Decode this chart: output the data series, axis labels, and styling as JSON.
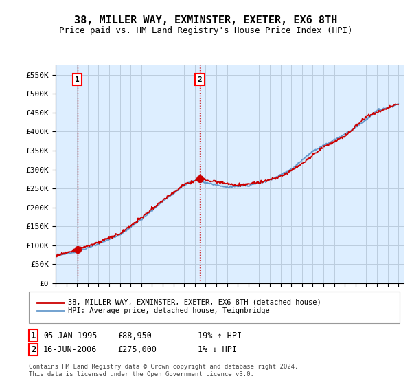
{
  "title": "38, MILLER WAY, EXMINSTER, EXETER, EX6 8TH",
  "subtitle": "Price paid vs. HM Land Registry's House Price Index (HPI)",
  "ylabel_ticks": [
    "£0",
    "£50K",
    "£100K",
    "£150K",
    "£200K",
    "£250K",
    "£300K",
    "£350K",
    "£400K",
    "£450K",
    "£500K",
    "£550K"
  ],
  "ytick_vals": [
    0,
    50000,
    100000,
    150000,
    200000,
    250000,
    300000,
    350000,
    400000,
    450000,
    500000,
    550000
  ],
  "ylim": [
    0,
    575000
  ],
  "xlim_start": 1993.0,
  "xlim_end": 2025.5,
  "sale1_date_num": 1995.03,
  "sale1_price": 88950,
  "sale1_label": "1",
  "sale1_date_str": "05-JAN-1995",
  "sale1_hpi_pct": "19% ↑ HPI",
  "sale2_date_num": 2006.46,
  "sale2_price": 275000,
  "sale2_label": "2",
  "sale2_date_str": "16-JUN-2006",
  "sale2_hpi_pct": "1% ↓ HPI",
  "legend_line1": "38, MILLER WAY, EXMINSTER, EXETER, EX6 8TH (detached house)",
  "legend_line2": "HPI: Average price, detached house, Teignbridge",
  "footer": "Contains HM Land Registry data © Crown copyright and database right 2024.\nThis data is licensed under the Open Government Licence v3.0.",
  "line_color_red": "#cc0000",
  "line_color_blue": "#6699cc",
  "bg_color": "#ddeeff",
  "grid_color": "#bbccdd"
}
